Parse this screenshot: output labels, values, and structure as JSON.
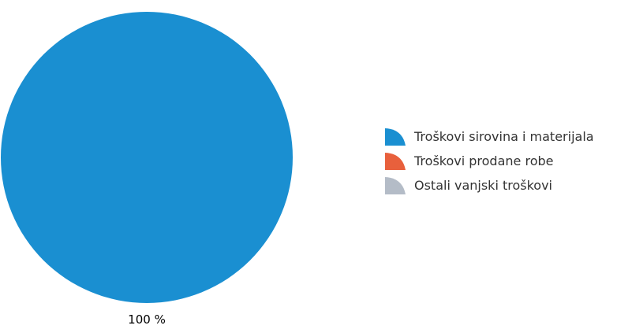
{
  "chart_data": {
    "type": "pie",
    "categories": [
      "Troškovi sirovina i materijala",
      "Troškovi prodane robe",
      "Ostali vanjski troškovi"
    ],
    "values": [
      100,
      0,
      0
    ],
    "colors": [
      "#1a8fd1",
      "#e8603c",
      "#b4bcc7"
    ],
    "data_labels": [
      "100 %"
    ],
    "legend_position": "right"
  }
}
